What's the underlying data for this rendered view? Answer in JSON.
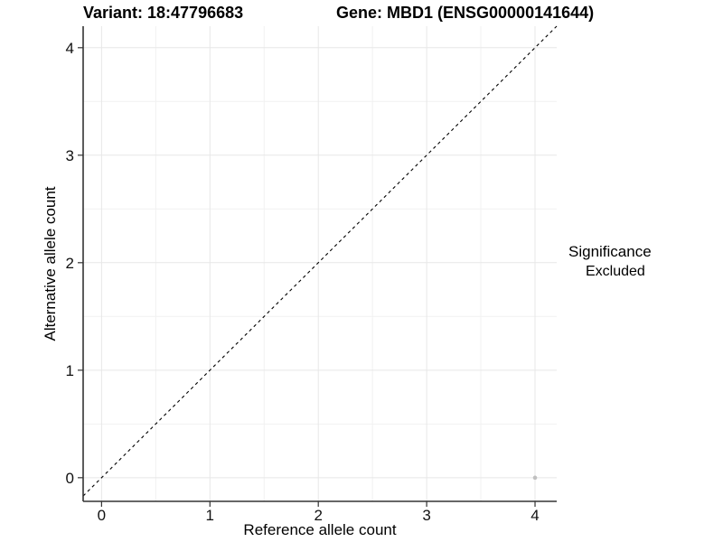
{
  "chart_data": {
    "type": "scatter",
    "title_left": "Variant: 18:47796683",
    "title_right": "Gene: MBD1 (ENSG00000141644)",
    "xlabel": "Reference allele count",
    "ylabel": "Alternative allele count",
    "x_ticks": [
      0,
      1,
      2,
      3,
      4
    ],
    "y_ticks": [
      0,
      1,
      2,
      3,
      4
    ],
    "xlim": [
      -0.17,
      4.2
    ],
    "ylim": [
      -0.22,
      4.2
    ],
    "grid": {
      "major": true,
      "minor": true,
      "major_color": "#e7e7e7",
      "minor_color": "#f1f1f1"
    },
    "identity_line": {
      "slope": 1,
      "intercept": 0,
      "linetype": "dashed",
      "color": "#000000"
    },
    "points": [
      {
        "x": 4,
        "y": 0,
        "significance": "Excluded",
        "color": "#c0c0c0"
      }
    ],
    "legend": {
      "title": "Significance",
      "position": "right",
      "entries": [
        {
          "label": "Excluded",
          "color": "#bcbcbc"
        }
      ]
    },
    "axis_color": "#333333",
    "tick_label_color": "#111111",
    "background": "#ffffff"
  }
}
